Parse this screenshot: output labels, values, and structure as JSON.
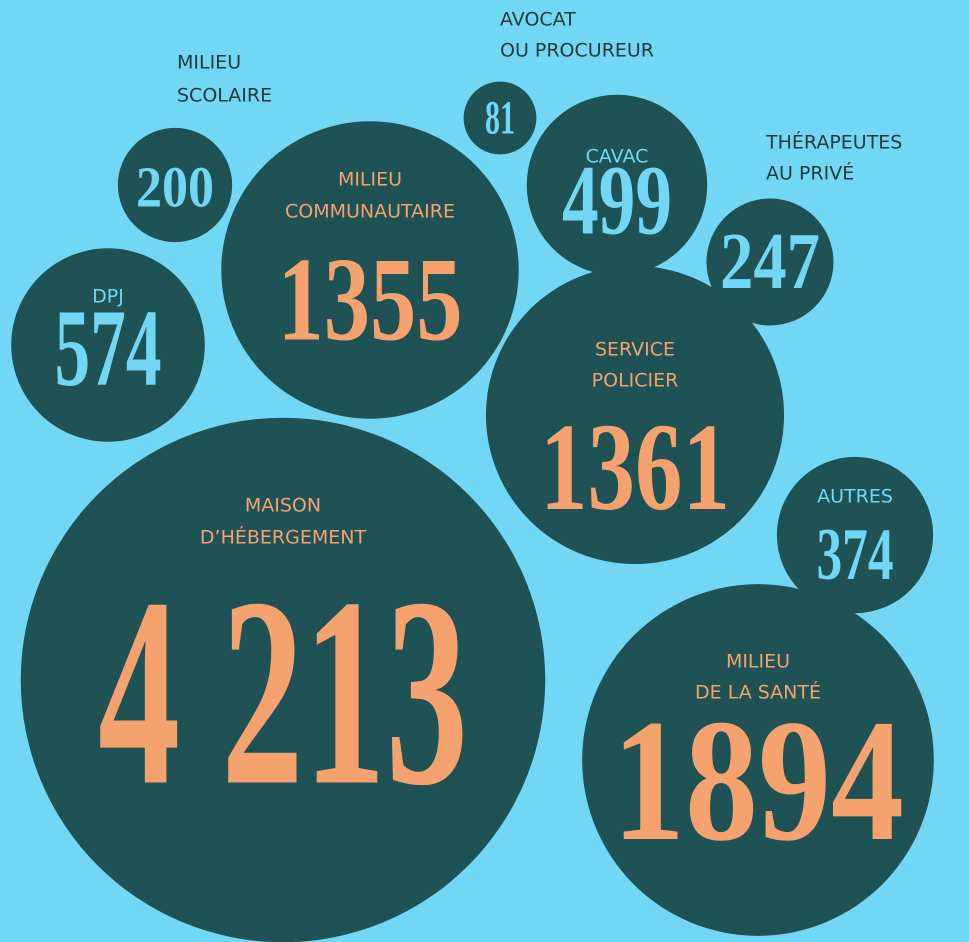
{
  "chart_data": {
    "type": "bubble",
    "color": "#1e5254",
    "categories": [
      [
        "MILIEU",
        "SCOLAIRE"
      ],
      [
        "AVOCAT",
        "OU PROCUREUR"
      ],
      [
        "MILIEU",
        "COMMUNAUTAIRE"
      ],
      [
        "CAVAC"
      ],
      [
        "THÉRAPEUTES",
        "AU PRIVÉ"
      ],
      [
        "DPJ"
      ],
      [
        "SERVICE",
        "POLICIER"
      ],
      [
        "AUTRES"
      ],
      [
        "MAISON",
        "D’HÉBERGEMENT"
      ],
      [
        "MILIEU",
        "DE LA SANTÉ"
      ]
    ],
    "values": [
      200,
      81,
      1355,
      499,
      247,
      574,
      1361,
      374,
      4213,
      1894
    ],
    "value_labels": [
      "200",
      "81",
      "1355",
      "499",
      "247",
      "574",
      "1361",
      "374",
      "4 213",
      "1894"
    ]
  }
}
